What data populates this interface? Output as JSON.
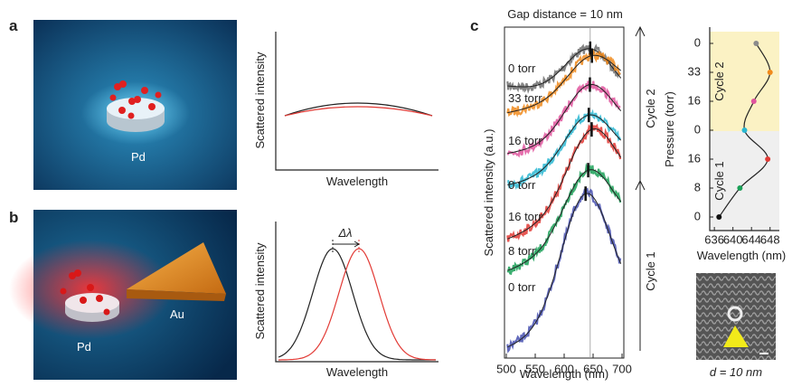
{
  "panel_a": {
    "label": "a",
    "image_label": "Pd",
    "y_axis": "Scattered intensity",
    "x_axis": "Wavelength"
  },
  "panel_b": {
    "label": "b",
    "image_labels": [
      "Pd",
      "Au"
    ],
    "y_axis": "Scattered intensity",
    "x_axis": "Wavelength",
    "shift": "Δλ"
  },
  "panel_c": {
    "label": "c",
    "title": "Gap distance = 10 nm",
    "spectra": [
      {
        "label": "0 torr",
        "color": "#6e6e6e"
      },
      {
        "label": "33 torr",
        "color": "#f08a1c"
      },
      {
        "label": "16 torr",
        "color": "#e0559e"
      },
      {
        "label": "0 torr",
        "color": "#2ab7d2"
      },
      {
        "label": "16 torr",
        "color": "#e23a35"
      },
      {
        "label": "8 torr",
        "color": "#1aa057"
      },
      {
        "label": "0 torr",
        "color": "#4650b0"
      }
    ],
    "y_axis": "Scattered intensity (a.u.)",
    "x_axis": "Wavelength (nm)",
    "xlim": [
      500,
      700
    ],
    "xticks": [
      500,
      550,
      600,
      650,
      700
    ],
    "cycles": [
      "Cycle 2",
      "Cycle 1"
    ]
  },
  "chart_data": {
    "type": "scatter",
    "categories": [
      "0",
      "33",
      "16",
      "0",
      "16",
      "8",
      "0"
    ],
    "values": [
      645,
      648,
      644.5,
      642.5,
      647.5,
      641.5,
      637
    ],
    "colors": [
      "#8c8c8c",
      "#f08a1c",
      "#e0559e",
      "#2ab7d2",
      "#e23a35",
      "#1aa057",
      "#111111"
    ],
    "xlim": [
      635,
      650
    ],
    "xticks": [
      636,
      640,
      644,
      648
    ],
    "x_label": "Wavelength (nm)",
    "y_label": "Pressure (torr)",
    "cycles": [
      "Cycle 2",
      "Cycle 1"
    ]
  },
  "micrograph_caption": "d = 10 nm"
}
